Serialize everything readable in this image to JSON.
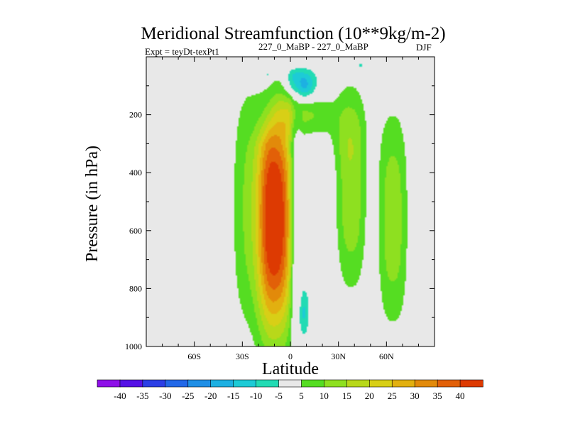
{
  "chart_data": {
    "type": "contour",
    "title": "Meridional Streamfunction (10**9kg/m-2)",
    "experiment_label": "Expt = teyDt-texPt1",
    "comparison_label": "227_0_MaBP - 227_0_MaBP",
    "season_label": "DJF",
    "xlabel": "Latitude",
    "ylabel": "Pressure (in hPa)",
    "xlim": [
      -90,
      90
    ],
    "ylim": [
      1000,
      0
    ],
    "x_ticks": [
      {
        "value": -60,
        "label": "60S"
      },
      {
        "value": -30,
        "label": "30S"
      },
      {
        "value": 0,
        "label": "0"
      },
      {
        "value": 30,
        "label": "30N"
      },
      {
        "value": 60,
        "label": "60N"
      }
    ],
    "y_ticks": [
      {
        "value": 200,
        "label": "200"
      },
      {
        "value": 400,
        "label": "400"
      },
      {
        "value": 600,
        "label": "600"
      },
      {
        "value": 800,
        "label": "800"
      },
      {
        "value": 1000,
        "label": "1000"
      }
    ],
    "colorbar": {
      "levels": [
        -40,
        -35,
        -30,
        -25,
        -20,
        -15,
        -10,
        -5,
        5,
        10,
        15,
        20,
        25,
        30,
        35,
        40
      ],
      "colors": [
        "#8e10e8",
        "#5511e6",
        "#2c3fe6",
        "#2268e8",
        "#1f8fe6",
        "#1db0e2",
        "#1dcbd6",
        "#22dbb4",
        "#e8e8e8",
        "#55dd22",
        "#8ee020",
        "#b8d81a",
        "#d8cf16",
        "#e2b010",
        "#e28a0a",
        "#e26008",
        "#dd3a02"
      ]
    },
    "field": {
      "description_values_in": "10**9 kg/m-2",
      "features": [
        {
          "name": "hadley-cell-main",
          "lat_center": -9,
          "p_center": 550,
          "peak": 45
        },
        {
          "name": "southern-broad-cell",
          "lat_center": -22,
          "p_center": 520,
          "peak": 12
        },
        {
          "name": "northern-upper-tongue",
          "lat_center": 10,
          "p_center": 210,
          "peak": 10
        },
        {
          "name": "northern-ferrel-cell",
          "lat_center": 38,
          "p_center": 450,
          "peak": 14
        },
        {
          "name": "northern-polar-cell",
          "lat_center": 65,
          "p_center": 560,
          "peak": 13
        },
        {
          "name": "upper-negative-cell",
          "lat_center": 6,
          "p_center": 100,
          "peak": -23
        },
        {
          "name": "lower-negative-cell",
          "lat_center": 6,
          "p_center": 880,
          "peak": -13
        }
      ]
    }
  }
}
